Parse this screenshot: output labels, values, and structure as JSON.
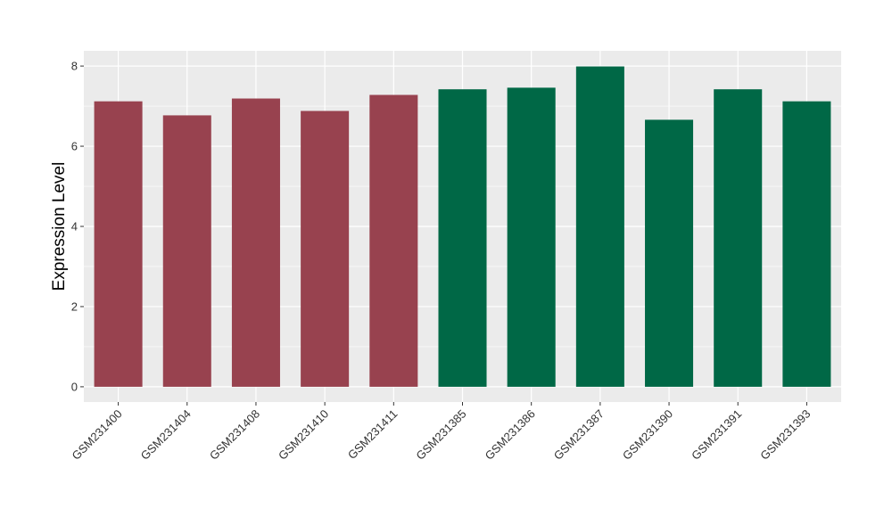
{
  "chart_data": {
    "type": "bar",
    "title": "",
    "xlabel": "",
    "ylabel": "Expression Level",
    "categories": [
      "GSM231400",
      "GSM231404",
      "GSM231408",
      "GSM231410",
      "GSM231411",
      "GSM231385",
      "GSM231386",
      "GSM231387",
      "GSM231390",
      "GSM231391",
      "GSM231393"
    ],
    "values": [
      7.12,
      6.77,
      7.19,
      6.88,
      7.28,
      7.42,
      7.46,
      7.99,
      6.66,
      7.42,
      7.12
    ],
    "bar_colors": [
      "#98424f",
      "#98424f",
      "#98424f",
      "#98424f",
      "#98424f",
      "#006846",
      "#006846",
      "#006846",
      "#006846",
      "#006846",
      "#006846"
    ],
    "y_ticks": [
      0,
      2,
      4,
      6,
      8
    ],
    "ylim": [
      -0.38,
      8.38
    ],
    "grid": true,
    "panel_background": "#ebebeb",
    "grid_color": "#ffffff"
  }
}
